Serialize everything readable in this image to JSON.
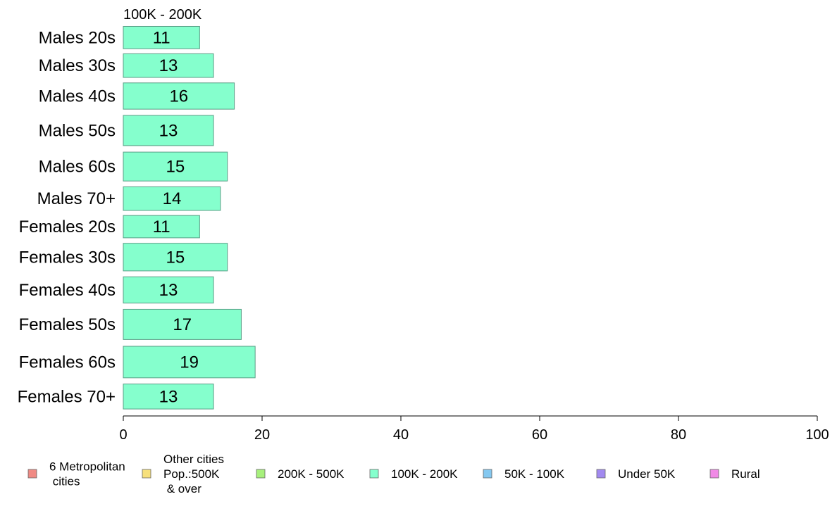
{
  "chart_data": {
    "type": "bar",
    "orientation": "horizontal",
    "title": "100K - 200K",
    "categories": [
      "Males 20s",
      "Males 30s",
      "Males 40s",
      "Males 50s",
      "Males 60s",
      "Males 70+",
      "Females 20s",
      "Females 30s",
      "Females 40s",
      "Females 50s",
      "Females 60s",
      "Females 70+"
    ],
    "values": [
      11,
      13,
      16,
      13,
      15,
      14,
      11,
      15,
      13,
      17,
      19,
      13
    ],
    "relative_bar_widths": [
      0.85,
      0.9,
      1.0,
      1.15,
      1.1,
      0.9,
      0.85,
      1.05,
      1.0,
      1.15,
      1.2,
      0.95
    ],
    "xlim": [
      0,
      100
    ],
    "xticks": [
      0,
      20,
      40,
      60,
      80,
      100
    ],
    "bar_color": "#85FFCD",
    "bar_edge_color": "#5A9E86",
    "grid": false,
    "legend": {
      "placement": "bottom",
      "items": [
        {
          "lines": [
            "6 Metropolitan",
            " cities"
          ],
          "color": "#F08A84"
        },
        {
          "lines": [
            "Other cities",
            "Pop.:500K",
            " & over"
          ],
          "color": "#F6E07C"
        },
        {
          "lines": [
            "200K - 500K"
          ],
          "color": "#A7F07C"
        },
        {
          "lines": [
            "100K - 200K"
          ],
          "color": "#85FFCD"
        },
        {
          "lines": [
            "50K - 100K"
          ],
          "color": "#84C8F0"
        },
        {
          "lines": [
            "Under 50K"
          ],
          "color": "#A28AF0"
        },
        {
          "lines": [
            "Rural"
          ],
          "color": "#F08AE6"
        }
      ]
    }
  }
}
